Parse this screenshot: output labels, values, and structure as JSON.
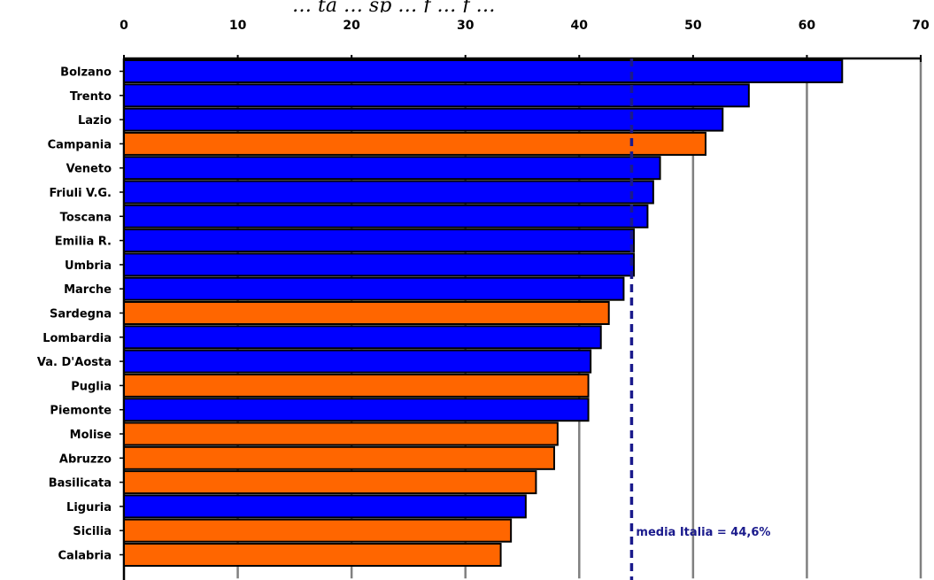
{
  "chart_data": {
    "type": "bar",
    "orientation": "horizontal",
    "title": "… ta … sp … f … f …",
    "categories": [
      "Bolzano",
      "Trento",
      "Lazio",
      "Campania",
      "Veneto",
      "Friuli V.G.",
      "Toscana",
      "Emilia R.",
      "Umbria",
      "Marche",
      "Sardegna",
      "Lombardia",
      "Va. D'Aosta",
      "Puglia",
      "Piemonte",
      "Molise",
      "Abruzzo",
      "Basilicata",
      "Liguria",
      "Sicilia",
      "Calabria"
    ],
    "values": [
      63.1,
      54.9,
      52.6,
      51.1,
      47.1,
      46.5,
      46.0,
      44.8,
      44.8,
      43.9,
      42.6,
      41.9,
      41.0,
      40.8,
      40.8,
      38.1,
      37.8,
      36.2,
      35.3,
      34.0,
      33.1
    ],
    "bar_colors": [
      "#0000ff",
      "#0000ff",
      "#0000ff",
      "#ff6600",
      "#0000ff",
      "#0000ff",
      "#0000ff",
      "#0000ff",
      "#0000ff",
      "#0000ff",
      "#ff6600",
      "#0000ff",
      "#0000ff",
      "#ff6600",
      "#0000ff",
      "#ff6600",
      "#ff6600",
      "#ff6600",
      "#0000ff",
      "#ff6600",
      "#ff6600"
    ],
    "xlim": [
      0,
      70
    ],
    "xticks": [
      "0",
      "10",
      "20",
      "30",
      "40",
      "50",
      "60",
      "70"
    ],
    "grid": "vertical",
    "reference_line": {
      "value": 44.6,
      "label": "media Italia = 44,6%",
      "color": "#1a1a8c",
      "style": "dashed"
    }
  }
}
